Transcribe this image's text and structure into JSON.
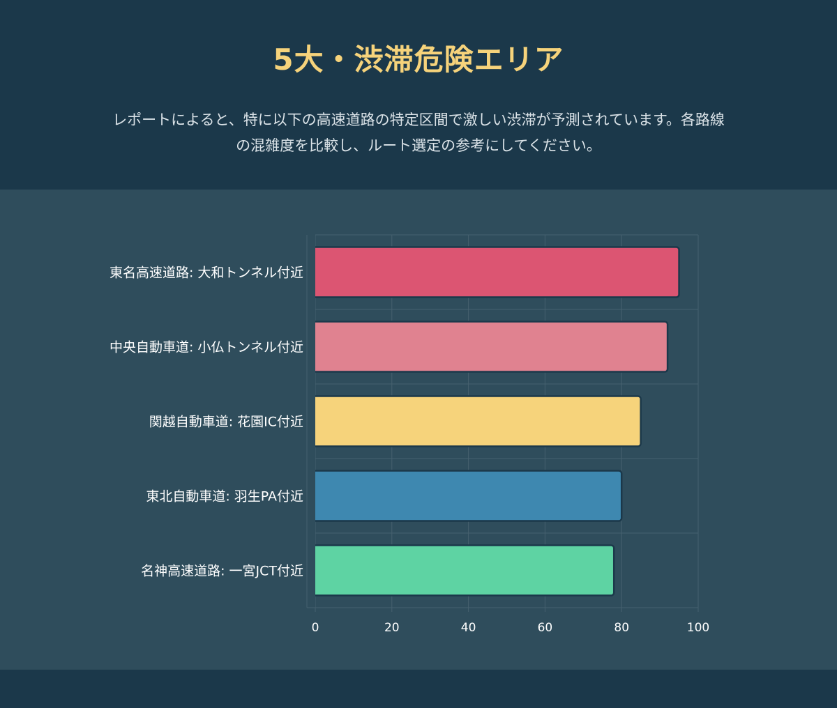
{
  "header": {
    "title": "5大・渋滞危険エリア",
    "description_line1": "レポートによると、特に以下の高速道路の特定区間で激しい渋滞が予測されています。各路線",
    "description_line2": "の混雑度を比較し、ルート選定の参考にしてください。"
  },
  "colors": {
    "background": "#1b384a",
    "panel": "#2f4d5c",
    "title": "#f6d37b",
    "text": "#dbe3e8",
    "bar_border": "#1b384a",
    "grid": "#46616f"
  },
  "chart_data": {
    "type": "bar",
    "orientation": "horizontal",
    "title": "",
    "xlabel": "",
    "ylabel": "",
    "xlim": [
      0,
      100
    ],
    "x_ticks": [
      0,
      20,
      40,
      60,
      80,
      100
    ],
    "grid": true,
    "legend": "none",
    "categories": [
      "東名高速道路: 大和トンネル付近",
      "中央自動車道: 小仏トンネル付近",
      "関越自動車道: 花園IC付近",
      "東北自動車道: 羽生PA付近",
      "名神高速道路: 一宮JCT付近"
    ],
    "values": [
      95,
      92,
      85,
      80,
      78
    ],
    "bar_colors": [
      "#dc5572",
      "#e08290",
      "#f6d37b",
      "#3e88b0",
      "#5ed3a3"
    ]
  }
}
